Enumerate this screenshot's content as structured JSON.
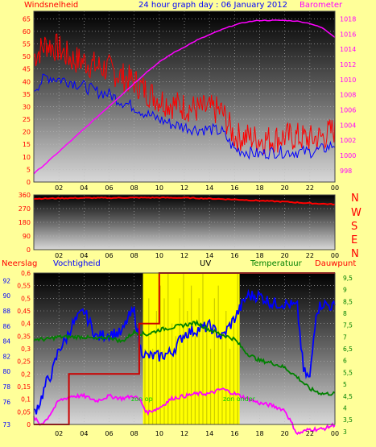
{
  "chart_data": [
    {
      "type": "line",
      "title": "24 hour graph day : 06 January 2012",
      "left_label": "Windsnelheid",
      "right_label": "Barometer",
      "x_ticks": [
        "02",
        "04",
        "06",
        "08",
        "10",
        "12",
        "14",
        "16",
        "18",
        "20",
        "22",
        "00"
      ],
      "y_left_ticks": [
        "0",
        "5",
        "10",
        "15",
        "20",
        "25",
        "30",
        "35",
        "40",
        "45",
        "50",
        "55",
        "60",
        "65"
      ],
      "y_right_ticks": [
        "998",
        "1000",
        "1002",
        "1004",
        "1006",
        "1008",
        "1010",
        "1012",
        "1014",
        "1016",
        "1018"
      ],
      "ylim_left": [
        0,
        68
      ],
      "ylim_right": [
        996.5,
        1019
      ],
      "series": [
        {
          "color": "#ff0000",
          "x": [
            0,
            1,
            2,
            3,
            4,
            5,
            6,
            7,
            8,
            9,
            10,
            11,
            12,
            13,
            14,
            15,
            16,
            17,
            18,
            19,
            20,
            21,
            22,
            23,
            24
          ],
          "y": [
            50,
            55,
            53,
            49,
            48,
            46,
            45,
            42,
            40,
            36,
            33,
            31,
            30,
            29,
            29,
            28,
            18,
            18,
            17,
            17,
            18,
            18,
            17,
            18,
            21
          ]
        },
        {
          "color": "#0000ff",
          "x": [
            0,
            1,
            2,
            3,
            4,
            5,
            6,
            7,
            8,
            9,
            10,
            11,
            12,
            13,
            14,
            15,
            16,
            17,
            18,
            19,
            20,
            21,
            22,
            23,
            24
          ],
          "y": [
            37,
            42,
            41,
            40,
            38,
            36,
            35,
            32,
            30,
            27,
            25,
            23,
            22,
            21,
            21,
            20,
            13,
            12,
            11,
            12,
            12,
            12,
            12,
            13,
            15
          ]
        },
        {
          "color": "#ff00ff",
          "x": [
            0,
            1,
            2,
            3,
            4,
            5,
            6,
            7,
            8,
            9,
            10,
            11,
            12,
            13,
            14,
            15,
            16,
            17,
            18,
            19,
            20,
            21,
            22,
            23,
            24
          ],
          "y": [
            997.6,
            999,
            1000.5,
            1002,
            1003.5,
            1005,
            1006.5,
            1008,
            1009.5,
            1011,
            1012.3,
            1013.4,
            1014.3,
            1015.2,
            1015.9,
            1016.6,
            1017.2,
            1017.6,
            1017.8,
            1017.8,
            1017.8,
            1017.7,
            1017.4,
            1016.8,
            1015.6
          ]
        }
      ]
    },
    {
      "type": "line",
      "right_labels": [
        "N",
        "W",
        "S",
        "E",
        "N"
      ],
      "y_ticks": [
        "0",
        "90",
        "180",
        "270",
        "360"
      ],
      "ylim": [
        0,
        360
      ],
      "x_ticks": [
        "02",
        "04",
        "06",
        "08",
        "10",
        "12",
        "14",
        "16",
        "18",
        "20",
        "22",
        "00"
      ],
      "series": [
        {
          "color": "#ff0000",
          "x": [
            0,
            2,
            4,
            6,
            8,
            10,
            12,
            14,
            16,
            18,
            20,
            22,
            24
          ],
          "y": [
            335,
            338,
            340,
            340,
            342,
            342,
            341,
            336,
            330,
            322,
            315,
            305,
            298
          ]
        }
      ]
    },
    {
      "type": "line",
      "labels": {
        "neerslag": "Neerslag",
        "vochtigheid": "Vochtigheid",
        "uv": "UV",
        "temperatuur": "Temperatuur",
        "dauwpunt": "Dauwpunt"
      },
      "sun_labels": {
        "up": "zon op",
        "down": "zon onder"
      },
      "y_humidity_ticks": [
        "73",
        "76",
        "78",
        "80",
        "82",
        "84",
        "86",
        "88",
        "90",
        "92"
      ],
      "y_rain_ticks": [
        "0",
        "0,05",
        "0,1",
        "0,15",
        "0,2",
        "0,25",
        "0,3",
        "0,35",
        "0,4",
        "0,45",
        "0,5",
        "0,55",
        "0,6"
      ],
      "y_temp_ticks": [
        "3",
        "3,5",
        "4",
        "4,5",
        "5",
        "5,5",
        "6",
        "6,5",
        "7",
        "7,5",
        "8",
        "8,5",
        "9",
        "9,5"
      ],
      "x_ticks": [
        "02",
        "04",
        "06",
        "08",
        "10",
        "12",
        "14",
        "16",
        "18",
        "20",
        "22",
        "00"
      ],
      "sun_window": [
        8.7,
        16.4
      ],
      "series": [
        {
          "name": "Vochtigheid",
          "color": "#0000ff",
          "axis": "humidity",
          "x": [
            0,
            0.5,
            1,
            1.5,
            2,
            2.5,
            3,
            3.5,
            4,
            5,
            6,
            7,
            7.5,
            8,
            8.5,
            9,
            10,
            11,
            12,
            13,
            14,
            15,
            16,
            17,
            18,
            19,
            20,
            21,
            21.5,
            22,
            22.5,
            23,
            24
          ],
          "y": [
            74.5,
            76,
            78.5,
            80,
            83,
            84,
            86,
            87,
            88,
            84.5,
            85,
            85,
            87,
            88,
            83,
            82,
            82,
            82.5,
            85,
            85.5,
            86,
            84.5,
            87,
            90,
            90,
            89,
            89,
            88.5,
            80,
            79,
            88,
            89,
            88.5
          ]
        },
        {
          "name": "Temperatuur",
          "color": "#008000",
          "axis": "temp",
          "x": [
            0,
            1,
            2,
            3,
            4,
            5,
            6,
            7,
            8,
            9,
            10,
            11,
            12,
            13,
            14,
            15,
            16,
            17,
            18,
            19,
            20,
            21,
            22,
            23,
            24
          ],
          "y": [
            6.9,
            6.9,
            7,
            7,
            7,
            6.9,
            7,
            6.8,
            7.2,
            7.1,
            7.3,
            7.4,
            7.5,
            7.6,
            7.3,
            7.1,
            6.9,
            6.3,
            6.0,
            5.9,
            5.7,
            5.3,
            4.8,
            4.6,
            4.6
          ]
        },
        {
          "name": "Dauwpunt",
          "color": "#ff00ff",
          "axis": "temp",
          "x": [
            0,
            0.5,
            1,
            2,
            3,
            4,
            5,
            6,
            7,
            8,
            8.5,
            9,
            10,
            11,
            12,
            13,
            14,
            15,
            16,
            17,
            18,
            19,
            20,
            20.5,
            21,
            21.5,
            22,
            23,
            24
          ],
          "y": [
            3.6,
            3.3,
            3.5,
            4.3,
            4.5,
            4.5,
            4.3,
            4.5,
            4.4,
            4.5,
            4.3,
            3.8,
            4.0,
            4.4,
            4.5,
            4.6,
            4.6,
            4.8,
            4.6,
            4.4,
            4.2,
            4.1,
            3.9,
            3.4,
            2.9,
            3.0,
            3.1,
            3.1,
            3.3
          ]
        },
        {
          "name": "Neerslag",
          "color": "#cc0000",
          "axis": "rain",
          "x": [
            0,
            2.8,
            2.8,
            8.4,
            8.4,
            10,
            10,
            24
          ],
          "y": [
            0,
            0,
            0.2,
            0.2,
            0.4,
            0.4,
            0.6,
            0.6
          ]
        }
      ],
      "uv_spikes": [
        0.3,
        0.5,
        0.3,
        0.45,
        0.55,
        0.5,
        0.6,
        0.4,
        0.35,
        0.5,
        0.6,
        0.45,
        0.55,
        0.35,
        0.5,
        0.6,
        0.4,
        0.3,
        0.5,
        0.55,
        0.35,
        0.45,
        0.3,
        0.4,
        0.6
      ]
    }
  ]
}
